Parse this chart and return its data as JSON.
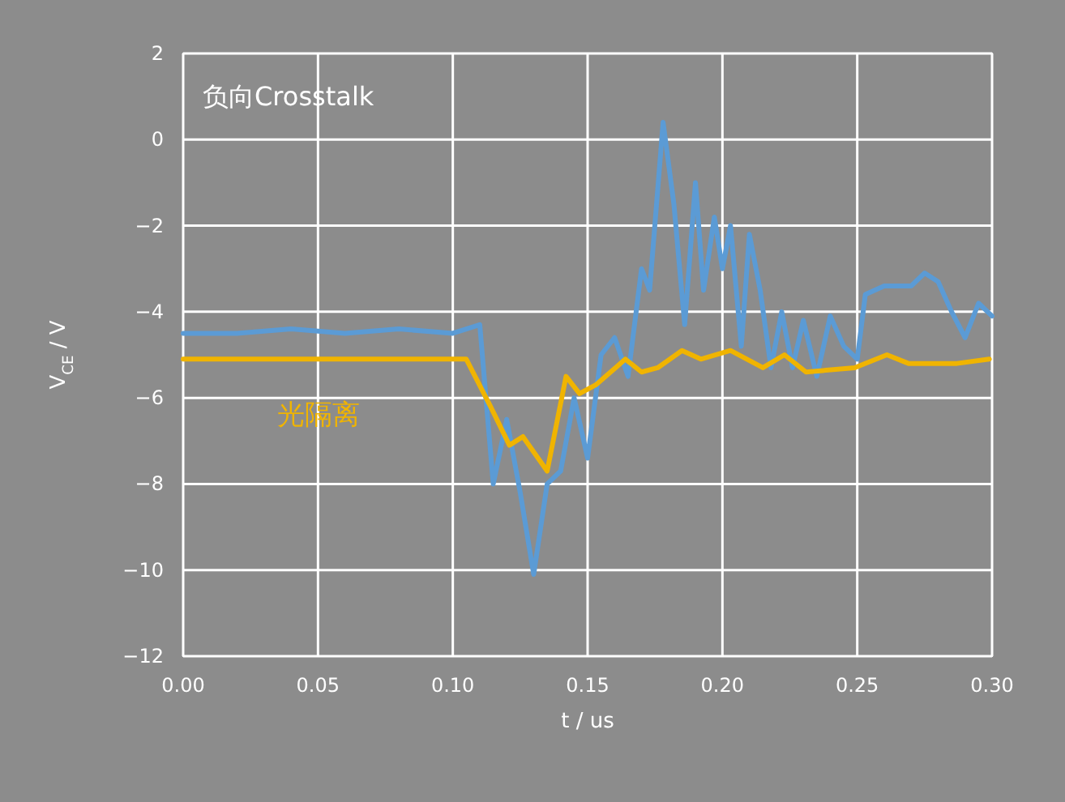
{
  "chart_data": {
    "type": "line",
    "title": "负向Crosstalk",
    "xlabel": "t / us",
    "ylabel": "V$_{CE}$ / V",
    "xlim": [
      0,
      0.3
    ],
    "xticks": [
      {
        "value": 0,
        "label": "0.00"
      },
      {
        "value": 0.05,
        "label": "0.05"
      },
      {
        "value": 0.1,
        "label": "0.10"
      },
      {
        "value": 0.15,
        "label": "0.15"
      },
      {
        "value": 0.2,
        "label": "0.20"
      },
      {
        "value": 0.25,
        "label": "0.25"
      },
      {
        "value": 0.3,
        "label": "0.30"
      }
    ],
    "ylim": [
      -12,
      2
    ],
    "yticks": [
      -12,
      -10,
      -8,
      -6,
      -4,
      -2,
      0,
      2
    ],
    "grid": true,
    "legend": false,
    "marker": "none",
    "line_style": "solid",
    "series": [
      {
        "color": "#5b9bd5",
        "x": [
          0,
          0.02,
          0.04,
          0.06,
          0.08,
          0.1,
          0.105,
          0.11,
          0.115,
          0.12,
          0.125,
          0.13,
          0.135,
          0.14,
          0.145,
          0.15,
          0.155,
          0.16,
          0.165,
          0.17,
          0.173,
          0.178,
          0.182,
          0.186,
          0.19,
          0.193,
          0.197,
          0.2,
          0.203,
          0.207,
          0.21,
          0.214,
          0.218,
          0.222,
          0.226,
          0.23,
          0.235,
          0.24,
          0.245,
          0.25,
          0.253,
          0.26,
          0.27,
          0.275,
          0.28,
          0.285,
          0.29,
          0.295,
          0.3
        ],
        "values": [
          -4.5,
          -4.5,
          -4.4,
          -4.5,
          -4.4,
          -4.5,
          -4.4,
          -4.3,
          -8,
          -6.5,
          -8.2,
          -10.1,
          -8,
          -7.7,
          -6,
          -7.4,
          -5,
          -4.6,
          -5.5,
          -3,
          -3.5,
          0.4,
          -1.5,
          -4.3,
          -1,
          -3.5,
          -1.8,
          -3,
          -2,
          -4.8,
          -2.2,
          -3.5,
          -5.3,
          -4,
          -5.3,
          -4.2,
          -5.5,
          -4.1,
          -4.8,
          -5.1,
          -3.6,
          -3.4,
          -3.4,
          -3.1,
          -3.3,
          -4,
          -4.6,
          -3.8,
          -4.1
        ]
      },
      {
        "name": "光隔离",
        "color": "#f0b400",
        "x": [
          0,
          0.05,
          0.105,
          0.114,
          0.121,
          0.126,
          0.135,
          0.142,
          0.147,
          0.153,
          0.164,
          0.17,
          0.176,
          0.185,
          0.192,
          0.203,
          0.215,
          0.223,
          0.231,
          0.249,
          0.261,
          0.269,
          0.287,
          0.299
        ],
        "values": [
          -5.1,
          -5.1,
          -5.1,
          -6.2,
          -7.1,
          -6.9,
          -7.7,
          -5.5,
          -5.9,
          -5.7,
          -5.1,
          -5.4,
          -5.3,
          -4.9,
          -5.1,
          -4.9,
          -5.3,
          -5,
          -5.4,
          -5.3,
          -5,
          -5.2,
          -5.2,
          -5.1
        ]
      }
    ]
  }
}
